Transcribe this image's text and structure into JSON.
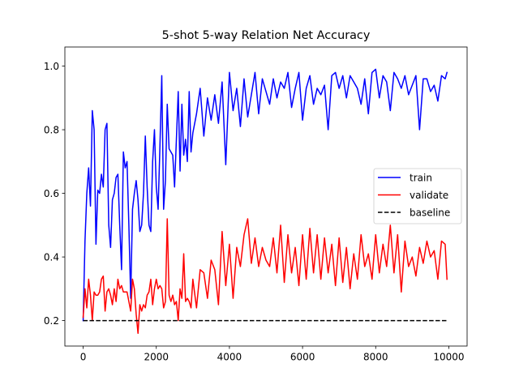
{
  "chart_data": {
    "type": "line",
    "title": "5-shot 5-way Relation Net Accuracy",
    "xlabel": "",
    "ylabel": "",
    "xlim": [
      -500,
      10500
    ],
    "ylim": [
      0.12,
      1.06
    ],
    "xticks": [
      0,
      2000,
      4000,
      6000,
      8000,
      10000
    ],
    "xtick_labels": [
      "0",
      "2000",
      "4000",
      "6000",
      "8000",
      "10000"
    ],
    "yticks": [
      0.2,
      0.4,
      0.6,
      0.8,
      1.0
    ],
    "ytick_labels": [
      "0.2",
      "0.4",
      "0.6",
      "0.8",
      "1.0"
    ],
    "grid": false,
    "legend_position": "center-right",
    "series": [
      {
        "name": "train",
        "color": "#0000ff",
        "style": "solid",
        "x": [
          0,
          50,
          100,
          150,
          200,
          250,
          300,
          350,
          400,
          450,
          500,
          550,
          600,
          650,
          700,
          750,
          800,
          850,
          900,
          950,
          1000,
          1050,
          1100,
          1150,
          1200,
          1250,
          1300,
          1350,
          1400,
          1450,
          1500,
          1550,
          1600,
          1650,
          1700,
          1750,
          1800,
          1850,
          1900,
          1950,
          2000,
          2050,
          2100,
          2150,
          2200,
          2250,
          2300,
          2350,
          2400,
          2450,
          2500,
          2550,
          2600,
          2650,
          2700,
          2750,
          2800,
          2850,
          2900,
          2950,
          3000,
          3100,
          3200,
          3300,
          3400,
          3500,
          3600,
          3700,
          3800,
          3900,
          4000,
          4100,
          4200,
          4300,
          4400,
          4500,
          4600,
          4700,
          4800,
          4900,
          5000,
          5100,
          5200,
          5300,
          5400,
          5500,
          5600,
          5700,
          5800,
          5900,
          6000,
          6100,
          6200,
          6300,
          6400,
          6500,
          6600,
          6700,
          6800,
          6900,
          7000,
          7100,
          7200,
          7300,
          7400,
          7500,
          7600,
          7700,
          7800,
          7900,
          8000,
          8100,
          8200,
          8300,
          8400,
          8500,
          8600,
          8700,
          8800,
          8900,
          9000,
          9100,
          9200,
          9300,
          9400,
          9500,
          9600,
          9700,
          9800,
          9900,
          9950
        ],
        "values": [
          0.2,
          0.45,
          0.6,
          0.68,
          0.56,
          0.86,
          0.8,
          0.44,
          0.61,
          0.6,
          0.66,
          0.62,
          0.8,
          0.82,
          0.5,
          0.43,
          0.58,
          0.6,
          0.65,
          0.66,
          0.5,
          0.36,
          0.73,
          0.68,
          0.7,
          0.5,
          0.27,
          0.55,
          0.6,
          0.64,
          0.58,
          0.48,
          0.5,
          0.6,
          0.78,
          0.62,
          0.5,
          0.48,
          0.7,
          0.8,
          0.62,
          0.55,
          0.75,
          0.97,
          0.55,
          0.64,
          0.88,
          0.74,
          0.73,
          0.72,
          0.62,
          0.77,
          0.92,
          0.67,
          0.88,
          0.72,
          0.77,
          0.7,
          0.92,
          0.73,
          0.79,
          0.85,
          0.93,
          0.78,
          0.9,
          0.83,
          0.91,
          0.82,
          0.95,
          0.69,
          0.98,
          0.86,
          0.93,
          0.81,
          0.96,
          0.84,
          0.91,
          0.98,
          0.85,
          0.96,
          0.92,
          0.88,
          0.96,
          0.9,
          0.95,
          0.93,
          0.98,
          0.87,
          0.93,
          0.98,
          0.83,
          0.93,
          0.97,
          0.88,
          0.93,
          0.91,
          0.94,
          0.8,
          0.97,
          0.98,
          0.93,
          0.97,
          0.9,
          0.97,
          0.95,
          0.93,
          0.88,
          0.96,
          0.85,
          0.98,
          0.99,
          0.9,
          0.97,
          0.95,
          0.86,
          0.98,
          0.96,
          0.93,
          0.97,
          0.91,
          0.94,
          0.97,
          0.8,
          0.96,
          0.96,
          0.92,
          0.94,
          0.89,
          0.97,
          0.96,
          0.98
        ]
      },
      {
        "name": "validate",
        "color": "#ff0000",
        "style": "solid",
        "x": [
          0,
          50,
          100,
          150,
          200,
          250,
          300,
          350,
          400,
          450,
          500,
          550,
          600,
          650,
          700,
          750,
          800,
          850,
          900,
          950,
          1000,
          1050,
          1100,
          1150,
          1200,
          1250,
          1300,
          1350,
          1400,
          1450,
          1500,
          1550,
          1600,
          1650,
          1700,
          1750,
          1800,
          1850,
          1900,
          1950,
          2000,
          2050,
          2100,
          2150,
          2200,
          2250,
          2300,
          2350,
          2400,
          2450,
          2500,
          2550,
          2600,
          2650,
          2700,
          2750,
          2800,
          2850,
          2900,
          2950,
          3000,
          3100,
          3200,
          3300,
          3400,
          3500,
          3600,
          3700,
          3800,
          3900,
          4000,
          4100,
          4200,
          4300,
          4400,
          4500,
          4600,
          4700,
          4800,
          4900,
          5000,
          5100,
          5200,
          5300,
          5400,
          5500,
          5600,
          5700,
          5800,
          5900,
          6000,
          6100,
          6200,
          6300,
          6400,
          6500,
          6600,
          6700,
          6800,
          6900,
          7000,
          7100,
          7200,
          7300,
          7400,
          7500,
          7600,
          7700,
          7800,
          7900,
          8000,
          8100,
          8200,
          8300,
          8400,
          8500,
          8600,
          8700,
          8800,
          8900,
          9000,
          9100,
          9200,
          9300,
          9400,
          9500,
          9600,
          9700,
          9800,
          9900,
          9950
        ],
        "values": [
          0.21,
          0.3,
          0.24,
          0.33,
          0.28,
          0.2,
          0.29,
          0.28,
          0.28,
          0.29,
          0.33,
          0.34,
          0.23,
          0.29,
          0.3,
          0.28,
          0.25,
          0.3,
          0.26,
          0.33,
          0.3,
          0.31,
          0.29,
          0.29,
          0.29,
          0.26,
          0.23,
          0.33,
          0.3,
          0.22,
          0.16,
          0.25,
          0.23,
          0.25,
          0.24,
          0.28,
          0.29,
          0.33,
          0.25,
          0.3,
          0.33,
          0.3,
          0.31,
          0.3,
          0.24,
          0.26,
          0.52,
          0.28,
          0.26,
          0.28,
          0.25,
          0.26,
          0.2,
          0.3,
          0.27,
          0.41,
          0.26,
          0.27,
          0.26,
          0.24,
          0.33,
          0.24,
          0.36,
          0.35,
          0.27,
          0.39,
          0.36,
          0.25,
          0.48,
          0.31,
          0.44,
          0.27,
          0.43,
          0.37,
          0.47,
          0.52,
          0.38,
          0.46,
          0.37,
          0.43,
          0.39,
          0.37,
          0.46,
          0.35,
          0.5,
          0.32,
          0.47,
          0.35,
          0.43,
          0.31,
          0.47,
          0.33,
          0.49,
          0.35,
          0.47,
          0.33,
          0.46,
          0.35,
          0.44,
          0.31,
          0.46,
          0.32,
          0.43,
          0.3,
          0.41,
          0.33,
          0.47,
          0.37,
          0.41,
          0.33,
          0.47,
          0.35,
          0.44,
          0.37,
          0.5,
          0.35,
          0.47,
          0.29,
          0.45,
          0.37,
          0.4,
          0.34,
          0.43,
          0.38,
          0.45,
          0.4,
          0.42,
          0.33,
          0.45,
          0.44,
          0.33
        ]
      },
      {
        "name": "baseline",
        "color": "#000000",
        "style": "dashed",
        "x": [
          0,
          9950
        ],
        "values": [
          0.2,
          0.2
        ]
      }
    ]
  }
}
